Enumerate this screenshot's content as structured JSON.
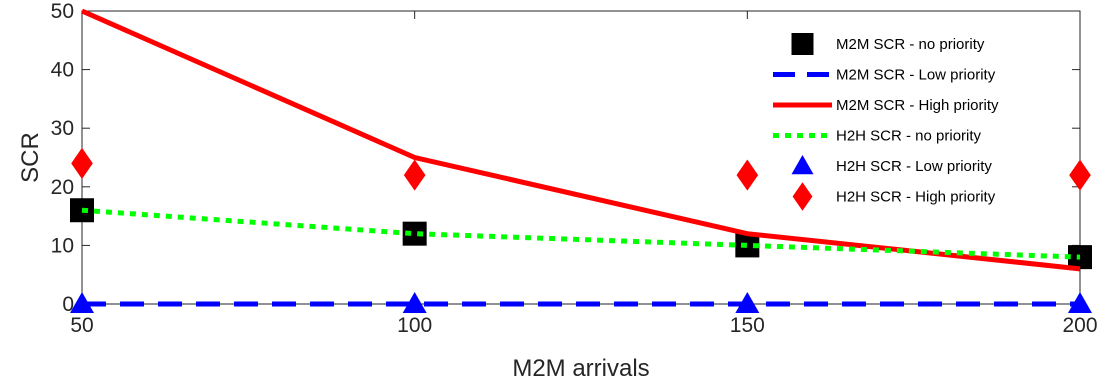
{
  "chart_data": {
    "type": "line",
    "xlabel": "M2M arrivals",
    "ylabel": "SCR",
    "x": [
      50,
      100,
      150,
      200
    ],
    "xlim": [
      50,
      200
    ],
    "ylim": [
      0,
      50
    ],
    "xticks": [
      "50",
      "100",
      "150",
      "200"
    ],
    "yticks": [
      "0",
      "10",
      "20",
      "30",
      "40",
      "50"
    ],
    "grid": false,
    "legend_position": "top-right",
    "series": [
      {
        "name": "M2M SCR - no priority",
        "values": [
          16,
          12,
          10,
          8
        ],
        "color": "#000000",
        "line": "none",
        "marker": "square"
      },
      {
        "name": "M2M SCR - Low priority",
        "values": [
          0,
          0,
          0,
          0
        ],
        "color": "#0000ff",
        "line": "dashed",
        "marker": "none"
      },
      {
        "name": "M2M SCR - High priority",
        "values": [
          50,
          25,
          12,
          6
        ],
        "color": "#ff0000",
        "line": "solid",
        "marker": "none"
      },
      {
        "name": "H2H SCR - no priority",
        "values": [
          16,
          12,
          10,
          8
        ],
        "color": "#00ff00",
        "line": "dotted",
        "marker": "none"
      },
      {
        "name": "H2H SCR - Low priority",
        "values": [
          0,
          0,
          0,
          0
        ],
        "color": "#0000ff",
        "line": "none",
        "marker": "triangle"
      },
      {
        "name": "H2H SCR - High priority",
        "values": [
          24,
          22,
          22,
          22
        ],
        "color": "#ff0000",
        "line": "none",
        "marker": "diamond"
      }
    ]
  }
}
